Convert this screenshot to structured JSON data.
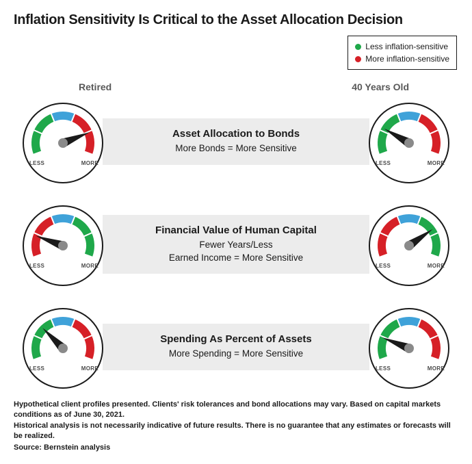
{
  "title": "Inflation Sensitivity Is Critical to the Asset Allocation Decision",
  "legend": {
    "less": {
      "label": "Less inflation-sensitive",
      "color": "#1fa84a"
    },
    "more": {
      "label": "More inflation-sensitive",
      "color": "#d62027"
    }
  },
  "columns": {
    "left": "Retired",
    "right": "40 Years Old"
  },
  "gauge_style": {
    "outer_stroke": "#1a1a1a",
    "outer_fill": "#ffffff",
    "hub_fill": "#8a8a8a",
    "needle_fill": "#1a1a1a",
    "tick_color": "#ffffff",
    "less_text": "LESS",
    "more_text": "MORE"
  },
  "rows": [
    {
      "title": "Asset Allocation to Bonds",
      "sub": "More Bonds = More Sensitive",
      "left_gauge": {
        "segments": [
          "#1fa84a",
          "#1fa84a",
          "#3fa2d9",
          "#d62027",
          "#d62027"
        ],
        "needle_deg": 68
      },
      "right_gauge": {
        "segments": [
          "#1fa84a",
          "#1fa84a",
          "#3fa2d9",
          "#d62027",
          "#d62027"
        ],
        "needle_deg": -60
      }
    },
    {
      "title": "Financial Value of Human Capital",
      "sub": "Fewer Years/Less\nEarned Income = More Sensitive",
      "left_gauge": {
        "segments": [
          "#d62027",
          "#d62027",
          "#3fa2d9",
          "#1fa84a",
          "#1fa84a"
        ],
        "needle_deg": -70
      },
      "right_gauge": {
        "segments": [
          "#d62027",
          "#d62027",
          "#3fa2d9",
          "#1fa84a",
          "#1fa84a"
        ],
        "needle_deg": 55
      }
    },
    {
      "title": "Spending As Percent of Assets",
      "sub": "More Spending = More Sensitive",
      "left_gauge": {
        "segments": [
          "#1fa84a",
          "#1fa84a",
          "#3fa2d9",
          "#d62027",
          "#d62027"
        ],
        "needle_deg": -45
      },
      "right_gauge": {
        "segments": [
          "#1fa84a",
          "#1fa84a",
          "#3fa2d9",
          "#d62027",
          "#d62027"
        ],
        "needle_deg": -68
      }
    }
  ],
  "footer": {
    "p1": "Hypothetical client profiles presented. Clients' risk tolerances and bond allocations may vary. Based on capital markets conditions as of June 30, 2021.",
    "p2": "Historical analysis is not necessarily indicative of future results. There is no guarantee that any estimates or forecasts will be realized.",
    "p3": "Source: Bernstein analysis"
  }
}
